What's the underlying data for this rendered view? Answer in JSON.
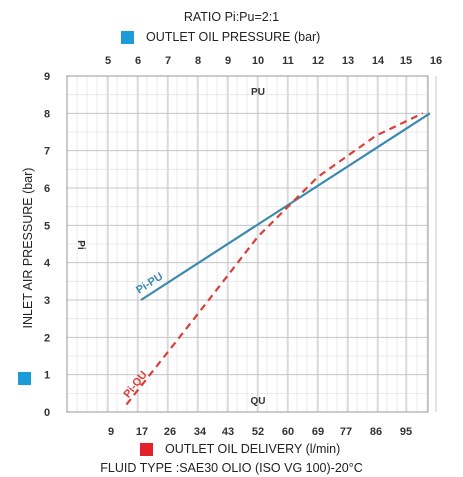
{
  "header": {
    "ratio": "RATIO Pi:Pu=2:1",
    "top_axis_legend": "OUTLET OIL PRESSURE (bar)",
    "bottom_axis_legend": "OUTLET OIL DELIVERY (l/min)",
    "fluid_type": "FLUID TYPE :SAE30 OLIO (ISO VG 100)-20°C",
    "left_axis_legend": "INLET AIR PRESSURE (bar)"
  },
  "colors": {
    "outlet_pressure_swatch": "#1b9bd7",
    "inlet_pressure_swatch": "#1b9bd7",
    "delivery_swatch": "#e3212b",
    "pi_pu_line": "#3a8ab0",
    "pi_qu_line": "#d9403a",
    "grid": "#c8c8c8",
    "axis_text": "#333333"
  },
  "chart_data": {
    "type": "line",
    "title": "RATIO Pi:Pu=2:1",
    "ylabel": "INLET AIR PRESSURE (bar)",
    "ylim": [
      0,
      9
    ],
    "y_ticks": [
      "0",
      "1",
      "2",
      "3",
      "4",
      "5",
      "6",
      "7",
      "8",
      "9"
    ],
    "top_axis": {
      "label": "OUTLET OIL PRESSURE (bar)",
      "ticks": [
        "5",
        "6",
        "7",
        "8",
        "9",
        "10",
        "11",
        "12",
        "13",
        "14",
        "15",
        "16"
      ]
    },
    "bottom_axis": {
      "label": "OUTLET OIL DELIVERY (l/min)",
      "ticks": [
        "9",
        "17",
        "26",
        "34",
        "43",
        "52",
        "60",
        "69",
        "77",
        "86",
        "95"
      ]
    },
    "axis_markers": {
      "top": "PU",
      "bottom": "QU",
      "left": "Pi"
    },
    "grid": true,
    "series": [
      {
        "name": "Pi-PU",
        "style": "solid",
        "x_axis": "top",
        "points": [
          [
            6.1,
            3.0
          ],
          [
            15.8,
            8.0
          ]
        ]
      },
      {
        "name": "Pi-QU",
        "style": "dashed",
        "x_axis": "bottom",
        "points": [
          [
            13,
            0.2
          ],
          [
            34,
            2.7
          ],
          [
            52,
            4.7
          ],
          [
            69,
            6.3
          ],
          [
            86,
            7.4
          ],
          [
            100,
            8.0
          ]
        ]
      }
    ]
  }
}
